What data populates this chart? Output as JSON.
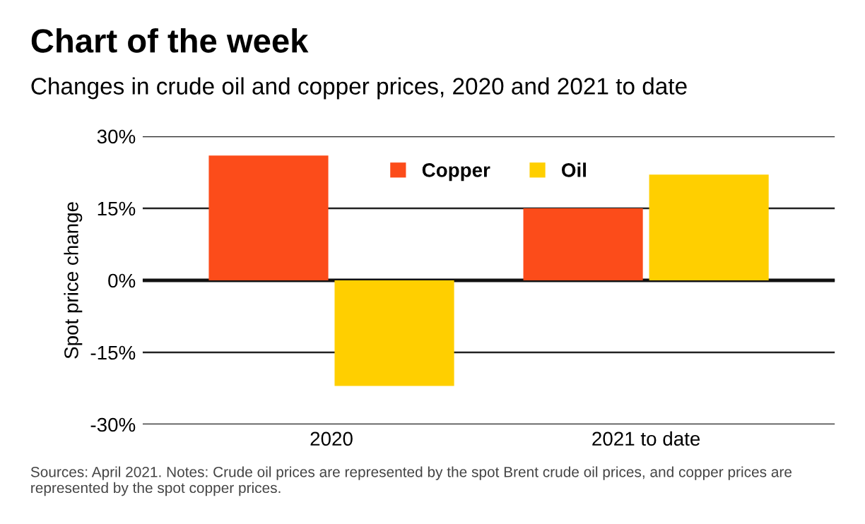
{
  "chart_data": {
    "type": "bar",
    "title": "Chart of the week",
    "subtitle": "Changes in crude oil and copper prices, 2020 and 2021 to date",
    "ylabel": "Spot price change",
    "categories": [
      "2020",
      "2021 to date"
    ],
    "series": [
      {
        "name": "Copper",
        "color": "#fc4c1a",
        "values": [
          26,
          15
        ]
      },
      {
        "name": "Oil",
        "color": "#ffcf00",
        "values": [
          -22,
          22
        ]
      }
    ],
    "ylim": [
      -30,
      30
    ],
    "yticks": [
      {
        "value": -30,
        "label": "-30%"
      },
      {
        "value": -15,
        "label": "-15%"
      },
      {
        "value": 0,
        "label": "0%"
      },
      {
        "value": 15,
        "label": "15%"
      },
      {
        "value": 30,
        "label": "30%"
      }
    ],
    "grid": "y",
    "legend": "top",
    "annotations": [
      "Sources: April 2021. Notes: Crude oil prices are represented by the spot Brent crude oil prices, and copper prices are represented by the spot copper prices."
    ]
  }
}
